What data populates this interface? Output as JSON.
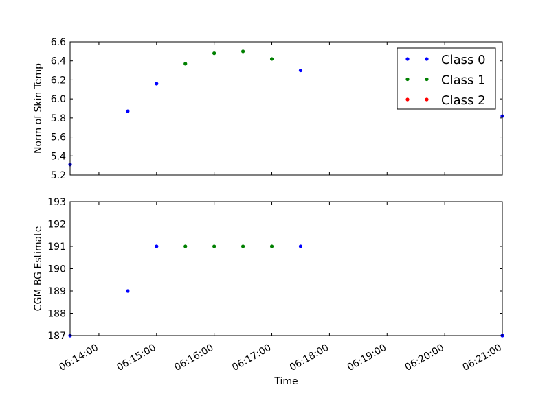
{
  "chart_data": [
    {
      "type": "scatter",
      "panel": "top",
      "xlabel": "",
      "ylabel": "Norm of Skin Temp",
      "xlim": [
        "06:13:30",
        "06:21:00"
      ],
      "ylim": [
        5.2,
        6.6
      ],
      "yticks": [
        "5.2",
        "5.4",
        "5.6",
        "5.8",
        "6.0",
        "6.2",
        "6.4",
        "6.6"
      ],
      "grid": false,
      "legend": {
        "placement": "top-right",
        "entries": [
          {
            "label": "Class 0",
            "color": "#0000ff"
          },
          {
            "label": "Class 1",
            "color": "#008000"
          },
          {
            "label": "Class 2",
            "color": "#ff0000"
          }
        ]
      },
      "series": [
        {
          "name": "Class 0",
          "color": "#0000ff",
          "points": [
            {
              "x": "06:13:30",
              "y": 5.31
            },
            {
              "x": "06:14:30",
              "y": 5.87
            },
            {
              "x": "06:15:00",
              "y": 6.16
            },
            {
              "x": "06:17:30",
              "y": 6.3
            },
            {
              "x": "06:21:00",
              "y": 5.82
            }
          ]
        },
        {
          "name": "Class 1",
          "color": "#008000",
          "points": [
            {
              "x": "06:15:30",
              "y": 6.37
            },
            {
              "x": "06:16:00",
              "y": 6.48
            },
            {
              "x": "06:16:30",
              "y": 6.5
            },
            {
              "x": "06:17:00",
              "y": 6.42
            }
          ]
        },
        {
          "name": "Class 2",
          "color": "#ff0000",
          "points": []
        }
      ]
    },
    {
      "type": "scatter",
      "panel": "bottom",
      "xlabel": "Time",
      "ylabel": "CGM BG Estimate",
      "xlim": [
        "06:13:30",
        "06:21:00"
      ],
      "ylim": [
        187,
        193
      ],
      "xticks": [
        "06:14:00",
        "06:15:00",
        "06:16:00",
        "06:17:00",
        "06:18:00",
        "06:19:00",
        "06:20:00",
        "06:21:00"
      ],
      "yticks": [
        "187",
        "188",
        "189",
        "190",
        "191",
        "192",
        "193"
      ],
      "grid": false,
      "series": [
        {
          "name": "Class 0",
          "color": "#0000ff",
          "points": [
            {
              "x": "06:13:30",
              "y": 187
            },
            {
              "x": "06:14:30",
              "y": 189
            },
            {
              "x": "06:15:00",
              "y": 191
            },
            {
              "x": "06:17:30",
              "y": 191
            },
            {
              "x": "06:21:00",
              "y": 187
            }
          ]
        },
        {
          "name": "Class 1",
          "color": "#008000",
          "points": [
            {
              "x": "06:15:30",
              "y": 191
            },
            {
              "x": "06:16:00",
              "y": 191
            },
            {
              "x": "06:16:30",
              "y": 191
            },
            {
              "x": "06:17:00",
              "y": 191
            }
          ]
        },
        {
          "name": "Class 2",
          "color": "#ff0000",
          "points": []
        }
      ]
    }
  ]
}
